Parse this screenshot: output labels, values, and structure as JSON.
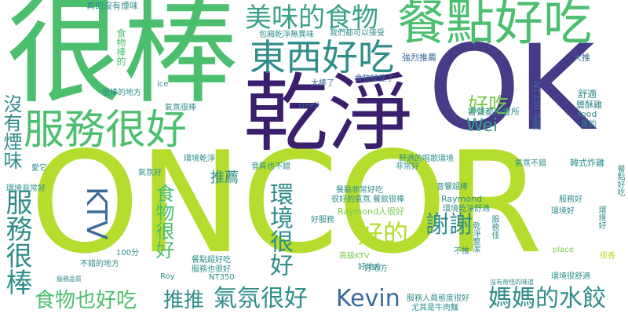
{
  "cloud": {
    "big": {
      "oncor": "ONCOR",
      "hen_bang": "很棒",
      "ok": "OK",
      "gan_jing": "乾淨",
      "can_dian_hao_chi": "餐點好吃",
      "fu_wu_hen_hao": "服務很好",
      "dong_xi_hao_chi": "東西好吃",
      "mei_wei": "美味的食物"
    },
    "medium": {
      "qi_fen_hen_hao": "氣氛很好",
      "kevin": "Kevin",
      "ma_ma_shui_jiao": "媽媽的水餃",
      "fu_wu_hen_bang": "服務很棒",
      "mei_you_yan_wei": "沒有煙味",
      "shi_wu_ye_hao_chi": "食物也好吃",
      "tui_tui": "推推",
      "ktv": "KTV",
      "hao_de": "好的",
      "xie_xie": "謝謝",
      "huan_jing_hen_hao": "環境很好",
      "hao_chi": "好吃",
      "wei": "Wei",
      "shi_wu_hen_hao": "食物很好",
      "tui_jian": "推薦"
    },
    "small": [
      "真的沒有煙味",
      "包廂乾淨無異味",
      "我們都可以接受",
      "強烈推薦",
      "食物棒的",
      "食物極佳了",
      "大推",
      "舒適",
      "鹽酥雞",
      "ice",
      "smell",
      "太棒了",
      "很棒的地方",
      "氣氛很棒",
      "響聲都市會所",
      "NT330 必點",
      "food",
      "是的",
      "韓式炸雞",
      "愛它",
      "環境乾淨",
      "音質也不錯",
      "好地方",
      "餐點非常好吃",
      "很好的氣氛 餐飲很棒",
      "音響超棒",
      "Raymond人很好",
      "Raymond",
      "環境乾淨舒適",
      "環境好",
      "服務好",
      "好服務",
      "高級KTV",
      "不推",
      "非常好",
      "氣氛不錯",
      "舒適的唱歌環境",
      "環境非常好",
      "氣氛好",
      "100分",
      "Roy",
      "不錯的地方",
      "餐點超好吃",
      "服務也很好",
      "NT350",
      "好地方",
      "服務人員態度很好",
      "尤其是牛肉麵",
      "沒有奇怪的味道",
      "環境很舒適",
      "place",
      "很香",
      "服務品質",
      "餐點好吃",
      "乾淨整潔",
      "服務佳",
      "環境好"
    ]
  }
}
